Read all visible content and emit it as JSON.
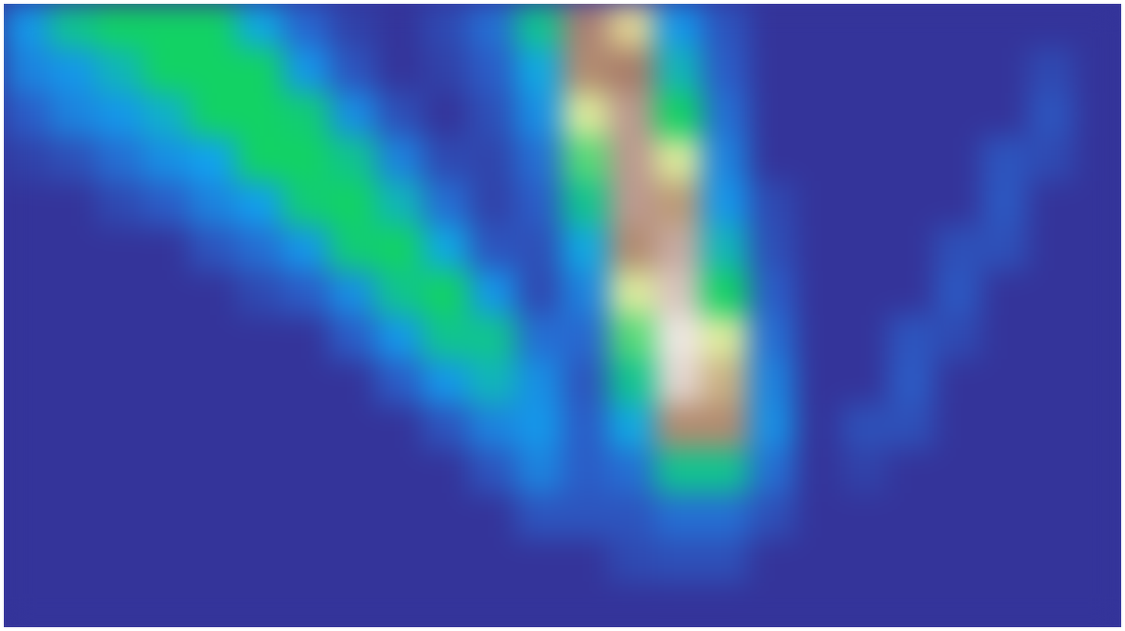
{
  "chart_data": {
    "type": "heatmap",
    "tick_labels": false,
    "zlim": [
      0,
      1
    ],
    "colors": [
      "#34349a",
      "#2a62cc",
      "#10a4f0",
      "#12d264",
      "#f2eea0",
      "#a27264",
      "#ffffff"
    ],
    "cells": [
      [
        0.3,
        0.45,
        0.5,
        0.5,
        0.5,
        0.35,
        0.18,
        0.05,
        0,
        0.08,
        0.2,
        0.45,
        0.85,
        0.7,
        0.3,
        0.12,
        0,
        0,
        0,
        0,
        0,
        0,
        0,
        0
      ],
      [
        0.25,
        0.3,
        0.4,
        0.5,
        0.5,
        0.5,
        0.3,
        0.12,
        0,
        0.05,
        0.15,
        0.35,
        0.8,
        0.82,
        0.4,
        0.15,
        0,
        0,
        0,
        0,
        0,
        0,
        0.08,
        0
      ],
      [
        0.15,
        0.25,
        0.3,
        0.38,
        0.5,
        0.5,
        0.48,
        0.28,
        0.1,
        0,
        0.1,
        0.28,
        0.65,
        0.88,
        0.5,
        0.2,
        0,
        0,
        0,
        0,
        0,
        0,
        0.12,
        0
      ],
      [
        0.05,
        0.1,
        0.2,
        0.28,
        0.33,
        0.5,
        0.5,
        0.45,
        0.25,
        0.08,
        0.06,
        0.2,
        0.55,
        0.88,
        0.65,
        0.25,
        0,
        0,
        0,
        0,
        0,
        0.12,
        0.08,
        0
      ],
      [
        0,
        0,
        0.08,
        0.15,
        0.25,
        0.32,
        0.48,
        0.5,
        0.4,
        0.2,
        0.05,
        0.15,
        0.45,
        0.88,
        0.78,
        0.3,
        0.08,
        0,
        0,
        0,
        0,
        0.13,
        0,
        0
      ],
      [
        0,
        0,
        0,
        0,
        0.12,
        0.2,
        0.3,
        0.48,
        0.5,
        0.35,
        0.12,
        0.1,
        0.35,
        0.8,
        0.9,
        0.4,
        0.1,
        0,
        0,
        0,
        0.1,
        0.1,
        0,
        0
      ],
      [
        0,
        0,
        0,
        0,
        0,
        0.08,
        0.15,
        0.28,
        0.45,
        0.5,
        0.3,
        0.08,
        0.25,
        0.65,
        0.93,
        0.5,
        0.15,
        0,
        0,
        0,
        0.13,
        0,
        0,
        0
      ],
      [
        0,
        0,
        0,
        0,
        0,
        0,
        0,
        0.15,
        0.3,
        0.45,
        0.45,
        0.2,
        0.18,
        0.55,
        0.97,
        0.65,
        0.2,
        0,
        0,
        0.12,
        0.08,
        0,
        0,
        0
      ],
      [
        0,
        0,
        0,
        0,
        0,
        0,
        0,
        0,
        0.15,
        0.3,
        0.4,
        0.28,
        0.12,
        0.45,
        0.95,
        0.75,
        0.25,
        0,
        0,
        0.14,
        0,
        0,
        0,
        0
      ],
      [
        0,
        0,
        0,
        0,
        0,
        0,
        0,
        0,
        0,
        0.12,
        0.25,
        0.3,
        0.15,
        0.35,
        0.8,
        0.8,
        0.28,
        0,
        0.1,
        0.1,
        0,
        0,
        0,
        0
      ],
      [
        0,
        0,
        0,
        0,
        0,
        0,
        0,
        0,
        0,
        0,
        0.12,
        0.25,
        0.15,
        0.2,
        0.45,
        0.45,
        0.2,
        0,
        0.05,
        0,
        0,
        0,
        0,
        0
      ],
      [
        0,
        0,
        0,
        0,
        0,
        0,
        0,
        0,
        0,
        0,
        0,
        0.12,
        0.12,
        0.12,
        0.2,
        0.2,
        0.1,
        0,
        0,
        0,
        0,
        0,
        0,
        0
      ],
      [
        0,
        0,
        0,
        0,
        0,
        0,
        0,
        0,
        0,
        0,
        0,
        0,
        0,
        0.08,
        0.1,
        0.1,
        0,
        0,
        0,
        0,
        0,
        0,
        0,
        0
      ],
      [
        0,
        0,
        0,
        0,
        0,
        0,
        0,
        0,
        0,
        0,
        0,
        0,
        0,
        0,
        0,
        0,
        0,
        0,
        0,
        0,
        0,
        0,
        0,
        0
      ]
    ]
  }
}
